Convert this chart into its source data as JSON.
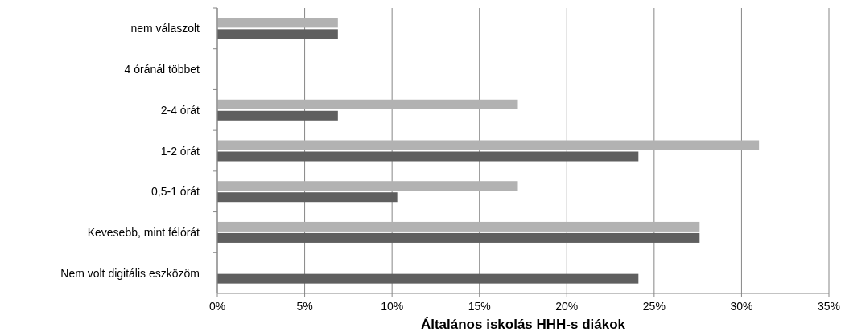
{
  "chart_data": {
    "type": "bar",
    "orientation": "horizontal",
    "xlabel": "Általános iskolás HHH-s diákok",
    "categories": [
      "nem válaszolt",
      "4 óránál többet",
      "2-4 órát",
      "1-2 órát",
      "0,5-1 órát",
      "Kevesebb, mint félórát",
      "Nem volt digitális eszközöm"
    ],
    "series": [
      {
        "color": "#b2b2b2",
        "values": [
          6.9,
          0,
          17.2,
          31.0,
          17.2,
          27.6,
          0
        ]
      },
      {
        "color": "#5f5f5f",
        "values": [
          6.9,
          0,
          6.9,
          24.1,
          10.3,
          27.6,
          24.1
        ]
      }
    ],
    "xlim": [
      0,
      35
    ],
    "xticks": [
      {
        "value": 0,
        "label": "0%"
      },
      {
        "value": 5,
        "label": "5%"
      },
      {
        "value": 10,
        "label": "10%"
      },
      {
        "value": 15,
        "label": "15%"
      },
      {
        "value": 20,
        "label": "20%"
      },
      {
        "value": 25,
        "label": "25%"
      },
      {
        "value": 30,
        "label": "30%"
      },
      {
        "value": 35,
        "label": "35%"
      }
    ],
    "grid": "x"
  }
}
